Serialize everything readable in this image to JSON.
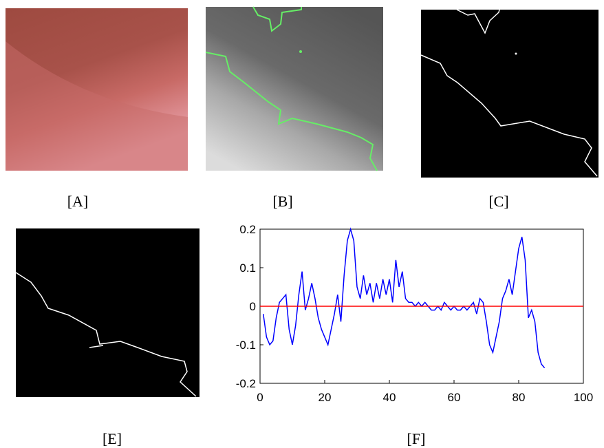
{
  "labels": [
    "[A]",
    "[B]",
    "[C]",
    "[E]",
    "[F]"
  ],
  "chart_data": {
    "type": "line",
    "xlim": [
      0,
      100
    ],
    "xticks": [
      0,
      20,
      40,
      60,
      80,
      100
    ],
    "ylim": [
      -0.2,
      0.2
    ],
    "yticks": [
      -0.2,
      -0.1,
      0,
      0.1,
      0.2
    ],
    "series": [
      {
        "color": "#0000ff",
        "x": [
          1,
          2,
          3,
          4,
          5,
          6,
          7,
          8,
          9,
          10,
          11,
          12,
          13,
          14,
          15,
          16,
          17,
          18,
          19,
          20,
          21,
          22,
          23,
          24,
          25,
          26,
          27,
          28,
          29,
          30,
          31,
          32,
          33,
          34,
          35,
          36,
          37,
          38,
          39,
          40,
          41,
          42,
          43,
          44,
          45,
          46,
          47,
          48,
          49,
          50,
          51,
          52,
          53,
          54,
          55,
          56,
          57,
          58,
          59,
          60,
          61,
          62,
          63,
          64,
          65,
          66,
          67,
          68,
          69,
          70,
          71,
          72,
          73,
          74,
          75,
          76,
          77,
          78,
          79,
          80,
          81,
          82,
          83,
          84,
          85,
          86,
          87,
          88
        ],
        "values": [
          -0.02,
          -0.08,
          -0.1,
          -0.09,
          -0.03,
          0.01,
          0.02,
          0.03,
          -0.06,
          -0.1,
          -0.05,
          0.03,
          0.09,
          -0.01,
          0.02,
          0.06,
          0.02,
          -0.03,
          -0.06,
          -0.08,
          -0.1,
          -0.06,
          -0.02,
          0.03,
          -0.04,
          0.08,
          0.17,
          0.2,
          0.17,
          0.05,
          0.02,
          0.08,
          0.03,
          0.06,
          0.01,
          0.06,
          0.02,
          0.07,
          0.03,
          0.07,
          0.01,
          0.12,
          0.05,
          0.09,
          0.02,
          0.01,
          0.01,
          0,
          0.01,
          0,
          0.01,
          0,
          -0.01,
          -0.01,
          0,
          -0.01,
          0.01,
          0,
          -0.01,
          0,
          -0.01,
          -0.01,
          0,
          -0.01,
          0,
          0.01,
          -0.02,
          0.02,
          0.01,
          -0.04,
          -0.1,
          -0.12,
          -0.08,
          -0.04,
          0.02,
          0.04,
          0.07,
          0.03,
          0.09,
          0.15,
          0.18,
          0.12,
          -0.03,
          -0.01,
          -0.04,
          -0.12,
          -0.15,
          -0.16
        ]
      },
      {
        "color": "#ff0000",
        "x": [
          0,
          100
        ],
        "values": [
          0,
          0
        ]
      }
    ]
  }
}
